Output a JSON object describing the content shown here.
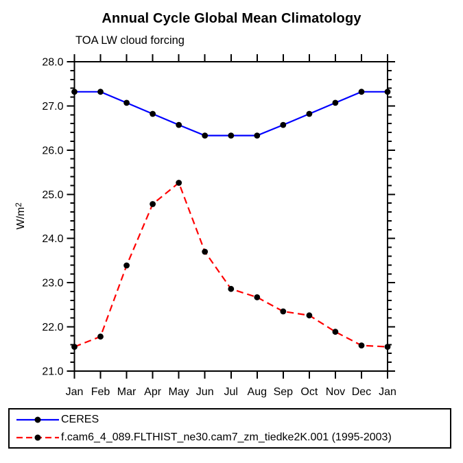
{
  "chart_data": {
    "type": "line",
    "title": "Annual Cycle Global Mean Climatology",
    "subtitle": "TOA LW cloud forcing",
    "ylabel_base": "W/m",
    "ylabel_exponent": "2",
    "x_categories": [
      "Jan",
      "Feb",
      "Mar",
      "Apr",
      "May",
      "Jun",
      "Jul",
      "Aug",
      "Sep",
      "Oct",
      "Nov",
      "Dec",
      "Jan"
    ],
    "ylim": [
      21.0,
      28.0
    ],
    "ytick_labels": [
      "21.0",
      "22.0",
      "23.0",
      "24.0",
      "25.0",
      "26.0",
      "27.0",
      "28.0"
    ],
    "ytick_interval": 1.0,
    "ytick_minor_interval": 0.2,
    "grid": "off",
    "legend_position": "bottom",
    "axis_color": "#000000",
    "series": [
      {
        "name": "CERES",
        "color": "#0000ff",
        "line_style": "solid",
        "marker": "filled-circle",
        "marker_color": "#000000",
        "values": [
          27.32,
          27.32,
          27.07,
          26.82,
          26.57,
          26.33,
          26.33,
          26.33,
          26.57,
          26.82,
          27.07,
          27.32,
          27.32
        ]
      },
      {
        "name": "f.cam6_4_089.FLTHIST_ne30.cam7_zm_tiedke2K.001 (1995-2003)",
        "color": "#ff0000",
        "line_style": "dashed",
        "marker": "filled-circle",
        "marker_color": "#000000",
        "values": [
          21.55,
          21.78,
          23.39,
          24.78,
          25.26,
          23.7,
          22.86,
          22.67,
          22.35,
          22.26,
          21.89,
          21.58,
          21.55
        ]
      }
    ]
  }
}
